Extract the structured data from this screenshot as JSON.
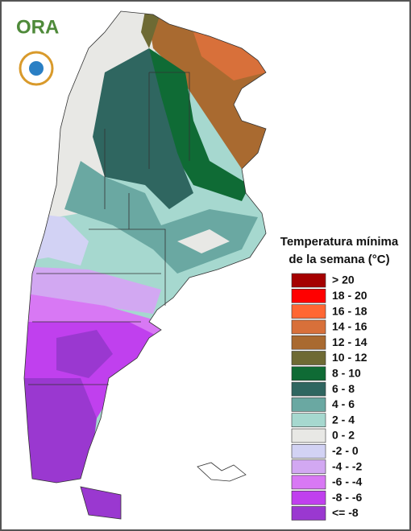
{
  "logo": {
    "text": "ORA"
  },
  "legend": {
    "title_lines": [
      "Temperatura mínima",
      "de la semana (°C)"
    ],
    "items": [
      {
        "label": "> 20",
        "color": "#a50000"
      },
      {
        "label": "18 - 20",
        "color": "#ff0000"
      },
      {
        "label": "16 - 18",
        "color": "#ff6633"
      },
      {
        "label": "14 - 16",
        "color": "#d8703a"
      },
      {
        "label": "12 - 14",
        "color": "#a96a30"
      },
      {
        "label": "10 - 12",
        "color": "#6e6a34"
      },
      {
        "label": "8 - 10",
        "color": "#0f6b35"
      },
      {
        "label": "6 - 8",
        "color": "#2f6660"
      },
      {
        "label": "4 - 6",
        "color": "#6aa8a2"
      },
      {
        "label": "2 - 4",
        "color": "#a6d8cf"
      },
      {
        "label": "0 - 2",
        "color": "#e8e8e5"
      },
      {
        "label": "-2 - 0",
        "color": "#d2d2f4"
      },
      {
        "label": "-4 - -2",
        "color": "#d2a8f2"
      },
      {
        "label": "-6 - -4",
        "color": "#d878f4"
      },
      {
        "label": "-8 - -6",
        "color": "#c040ee"
      },
      {
        "label": "<= -8",
        "color": "#9a38d0"
      }
    ]
  }
}
